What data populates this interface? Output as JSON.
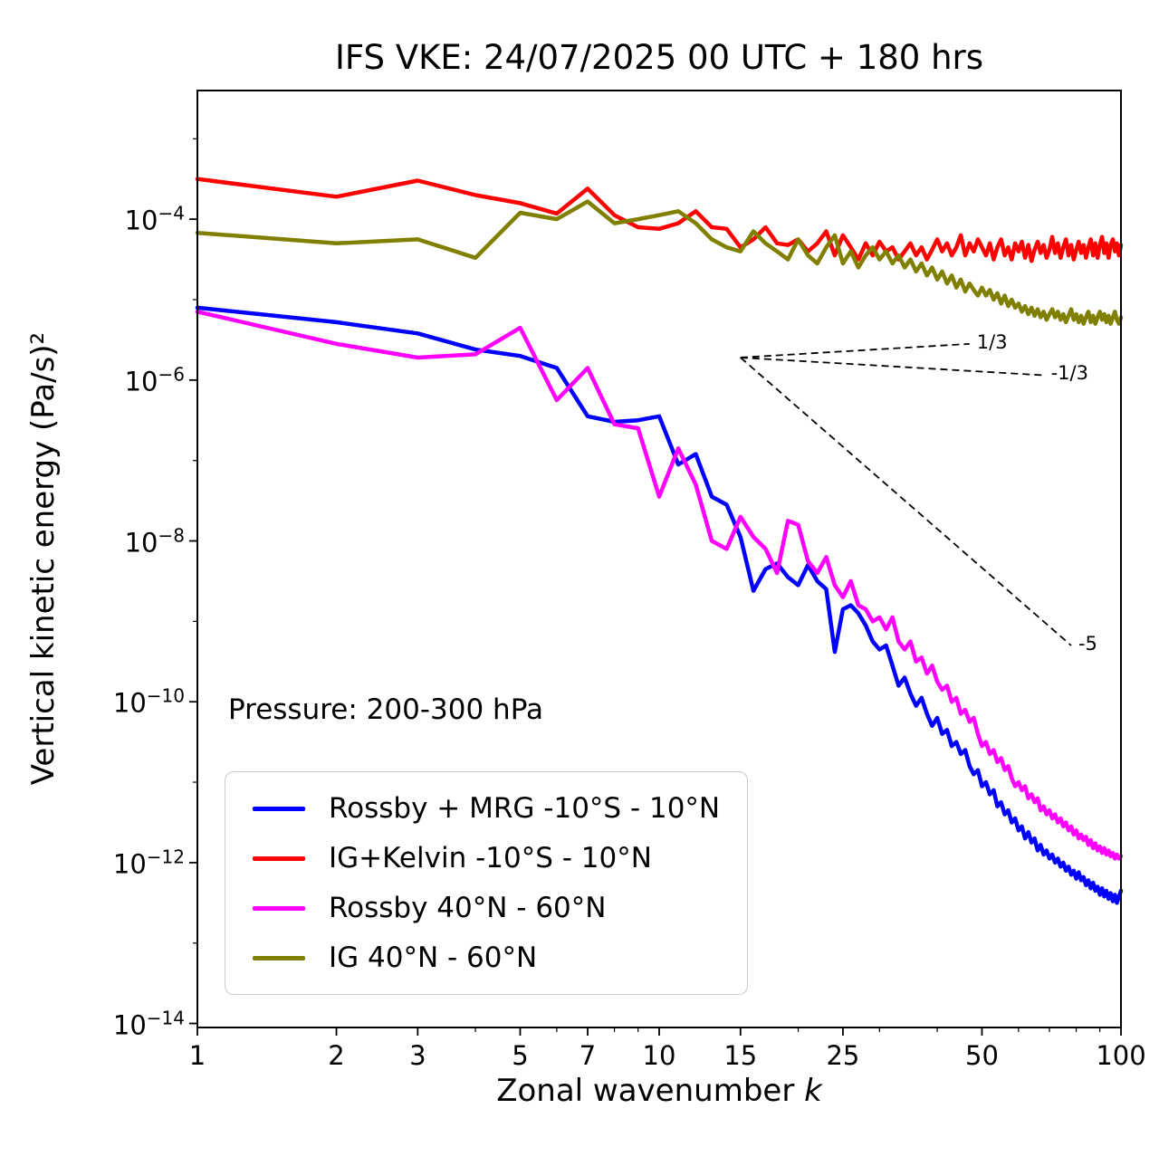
{
  "title": "IFS VKE: 24/07/2025 00 UTC + 180 hrs",
  "annotations": {
    "pressure_label": "Pressure: 200-300 hPa",
    "slope_guides": [
      {
        "label": "1/3",
        "from_k": 15,
        "from_log10": -5.72,
        "to_k": 47,
        "to_log10": -5.55
      },
      {
        "label": "-1/3",
        "from_k": 15,
        "from_log10": -5.72,
        "to_k": 68,
        "to_log10": -5.94
      },
      {
        "label": "-5",
        "from_k": 15,
        "from_log10": -5.72,
        "to_k": 78,
        "to_log10": -9.3
      }
    ]
  },
  "chart_data": {
    "type": "line",
    "x_scale": "log",
    "y_scale": "log",
    "title": "IFS VKE: 24/07/2025 00 UTC + 180 hrs",
    "xlabel": "Zonal wavenumber ",
    "xlabel_var": "k",
    "ylabel": "Vertical kinetic energy (Pa/s)²",
    "xlim": [
      1,
      100
    ],
    "ylim_log10": [
      -14.05,
      -2.4
    ],
    "x_ticks": [
      1,
      2,
      3,
      5,
      7,
      10,
      15,
      25,
      50,
      100
    ],
    "y_tick_exponents": [
      -4,
      -6,
      -8,
      -10,
      -12,
      -14
    ],
    "grid": false,
    "legend_position": "lower-left",
    "note": "y values are given as log10 of vertical kinetic energy in (Pa/s)^2",
    "x": [
      1,
      2,
      3,
      4,
      5,
      6,
      7,
      8,
      9,
      10,
      11,
      12,
      13,
      14,
      15,
      16,
      17,
      18,
      19,
      20,
      21,
      22,
      23,
      24,
      25,
      26,
      27,
      28,
      29,
      30,
      31,
      32,
      33,
      34,
      35,
      36,
      37,
      38,
      39,
      40,
      41,
      42,
      43,
      44,
      45,
      46,
      47,
      48,
      49,
      50,
      51,
      52,
      53,
      54,
      55,
      56,
      57,
      58,
      59,
      60,
      61,
      62,
      63,
      64,
      65,
      66,
      67,
      68,
      69,
      70,
      71,
      72,
      73,
      74,
      75,
      76,
      77,
      78,
      79,
      80,
      81,
      82,
      83,
      84,
      85,
      86,
      87,
      88,
      89,
      90,
      91,
      92,
      93,
      94,
      95,
      96,
      97,
      98,
      99,
      100
    ],
    "series": [
      {
        "id": "rossby-mrg-tropics",
        "name": "Rossby + MRG -10°S - 10°N",
        "color": "#0000ff",
        "values_log10": [
          -5.1,
          -5.28,
          -5.42,
          -5.62,
          -5.7,
          -5.85,
          -6.45,
          -6.52,
          -6.5,
          -6.45,
          -7.05,
          -6.92,
          -7.45,
          -7.55,
          -7.95,
          -8.62,
          -8.35,
          -8.28,
          -8.45,
          -8.55,
          -8.3,
          -8.5,
          -8.6,
          -9.38,
          -8.85,
          -8.8,
          -8.9,
          -9.05,
          -9.25,
          -9.35,
          -9.3,
          -9.55,
          -9.8,
          -9.7,
          -9.9,
          -10.05,
          -9.95,
          -10.15,
          -10.3,
          -10.2,
          -10.4,
          -10.35,
          -10.55,
          -10.5,
          -10.65,
          -10.6,
          -10.8,
          -10.9,
          -10.85,
          -11.05,
          -11.0,
          -11.15,
          -11.1,
          -11.3,
          -11.25,
          -11.4,
          -11.35,
          -11.5,
          -11.45,
          -11.6,
          -11.55,
          -11.7,
          -11.62,
          -11.75,
          -11.7,
          -11.85,
          -11.78,
          -11.9,
          -11.85,
          -11.95,
          -11.9,
          -12.0,
          -11.95,
          -12.05,
          -12.0,
          -12.1,
          -12.05,
          -12.15,
          -12.1,
          -12.2,
          -12.12,
          -12.22,
          -12.18,
          -12.28,
          -12.22,
          -12.32,
          -12.25,
          -12.35,
          -12.3,
          -12.4,
          -12.32,
          -12.42,
          -12.35,
          -12.45,
          -12.38,
          -12.48,
          -12.4,
          -12.5,
          -12.42,
          -12.35
        ]
      },
      {
        "id": "ig-kelvin-tropics",
        "name": "IG+Kelvin -10°S - 10°N",
        "color": "#ff0000",
        "values_log10": [
          -3.5,
          -3.72,
          -3.52,
          -3.7,
          -3.8,
          -3.93,
          -3.62,
          -3.95,
          -4.1,
          -4.12,
          -4.05,
          -3.9,
          -4.1,
          -4.12,
          -4.35,
          -4.25,
          -4.1,
          -4.3,
          -4.32,
          -4.25,
          -4.4,
          -4.3,
          -4.15,
          -4.45,
          -4.2,
          -4.35,
          -4.5,
          -4.3,
          -4.45,
          -4.28,
          -4.4,
          -4.35,
          -4.5,
          -4.4,
          -4.3,
          -4.45,
          -4.35,
          -4.5,
          -4.38,
          -4.25,
          -4.4,
          -4.3,
          -4.45,
          -4.35,
          -4.2,
          -4.45,
          -4.3,
          -4.4,
          -4.25,
          -4.35,
          -4.45,
          -4.3,
          -4.5,
          -4.35,
          -4.25,
          -4.45,
          -4.35,
          -4.5,
          -4.3,
          -4.4,
          -4.28,
          -4.48,
          -4.32,
          -4.52,
          -4.38,
          -4.28,
          -4.42,
          -4.32,
          -4.48,
          -4.38,
          -4.22,
          -4.42,
          -4.3,
          -4.48,
          -4.35,
          -4.25,
          -4.45,
          -4.32,
          -4.5,
          -4.38,
          -4.28,
          -4.42,
          -4.32,
          -4.48,
          -4.35,
          -4.25,
          -4.45,
          -4.3,
          -4.48,
          -4.32,
          -4.22,
          -4.42,
          -4.3,
          -4.48,
          -4.32,
          -4.25,
          -4.4,
          -4.3,
          -4.45,
          -4.32
        ]
      },
      {
        "id": "rossby-midlat",
        "name": "Rossby 40°N - 60°N",
        "color": "#ff00ff",
        "values_log10": [
          -5.15,
          -5.55,
          -5.72,
          -5.68,
          -5.35,
          -6.25,
          -5.85,
          -6.55,
          -6.6,
          -7.45,
          -6.85,
          -7.3,
          -8.0,
          -8.1,
          -7.7,
          -7.95,
          -8.1,
          -8.4,
          -7.75,
          -7.8,
          -8.25,
          -8.4,
          -8.2,
          -8.55,
          -8.7,
          -8.5,
          -8.8,
          -8.85,
          -9.0,
          -8.95,
          -9.1,
          -8.95,
          -9.25,
          -9.35,
          -9.25,
          -9.5,
          -9.45,
          -9.65,
          -9.55,
          -9.75,
          -9.85,
          -9.8,
          -10.0,
          -9.95,
          -10.15,
          -10.1,
          -10.25,
          -10.2,
          -10.4,
          -10.55,
          -10.5,
          -10.65,
          -10.6,
          -10.75,
          -10.7,
          -10.85,
          -10.8,
          -10.95,
          -11.05,
          -11.0,
          -11.1,
          -11.05,
          -11.2,
          -11.15,
          -11.25,
          -11.2,
          -11.35,
          -11.3,
          -11.4,
          -11.35,
          -11.45,
          -11.4,
          -11.5,
          -11.45,
          -11.55,
          -11.5,
          -11.6,
          -11.55,
          -11.65,
          -11.6,
          -11.7,
          -11.65,
          -11.72,
          -11.68,
          -11.78,
          -11.72,
          -11.82,
          -11.76,
          -11.85,
          -11.8,
          -11.88,
          -11.82,
          -11.9,
          -11.85,
          -11.92,
          -11.88,
          -11.95,
          -11.9,
          -11.95,
          -11.92
        ]
      },
      {
        "id": "ig-midlat",
        "name": "IG 40°N - 60°N",
        "color": "#808000",
        "values_log10": [
          -4.17,
          -4.3,
          -4.25,
          -4.48,
          -3.92,
          -4.0,
          -3.78,
          -4.05,
          -4.0,
          -3.95,
          -3.9,
          -4.05,
          -4.25,
          -4.35,
          -4.4,
          -4.15,
          -4.3,
          -4.4,
          -4.5,
          -4.25,
          -4.45,
          -4.55,
          -4.35,
          -4.2,
          -4.55,
          -4.4,
          -4.6,
          -4.45,
          -4.35,
          -4.5,
          -4.4,
          -4.55,
          -4.45,
          -4.6,
          -4.5,
          -4.65,
          -4.55,
          -4.7,
          -4.6,
          -4.75,
          -4.65,
          -4.8,
          -4.7,
          -4.85,
          -4.75,
          -4.9,
          -4.8,
          -4.88,
          -4.95,
          -4.85,
          -4.95,
          -4.88,
          -5.0,
          -4.92,
          -5.05,
          -4.95,
          -5.08,
          -5.0,
          -5.1,
          -5.05,
          -5.15,
          -5.08,
          -5.18,
          -5.1,
          -5.2,
          -5.12,
          -5.22,
          -5.15,
          -5.25,
          -5.18,
          -5.12,
          -5.22,
          -5.15,
          -5.25,
          -5.18,
          -5.28,
          -5.2,
          -5.12,
          -5.25,
          -5.18,
          -5.28,
          -5.2,
          -5.3,
          -5.22,
          -5.15,
          -5.28,
          -5.2,
          -5.3,
          -5.22,
          -5.15,
          -5.25,
          -5.18,
          -5.28,
          -5.2,
          -5.3,
          -5.22,
          -5.15,
          -5.25,
          -5.3,
          -5.22
        ]
      }
    ]
  }
}
